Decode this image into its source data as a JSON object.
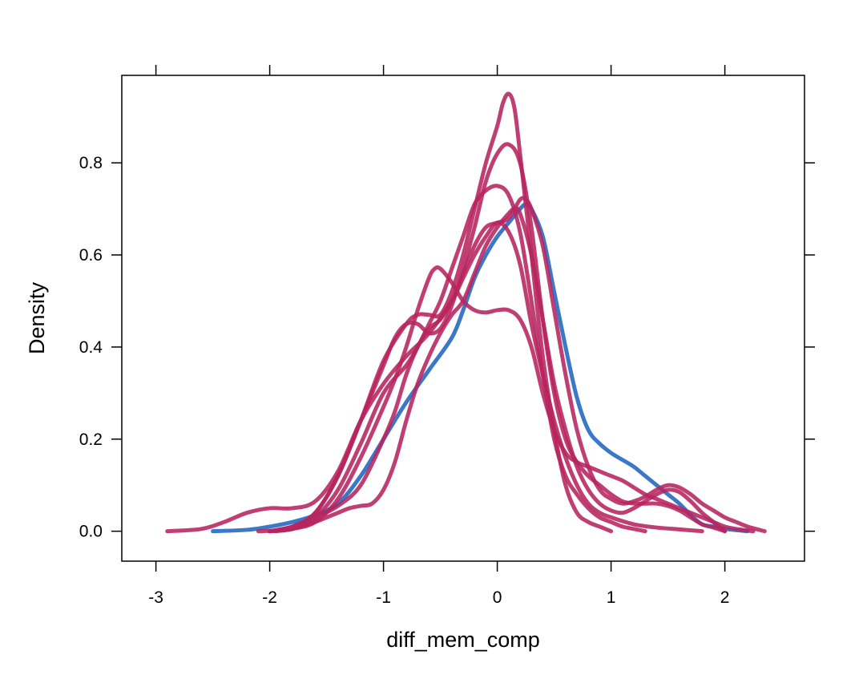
{
  "chart_data": {
    "type": "line",
    "xlabel": "diff_mem_comp",
    "ylabel": "Density",
    "xlim": [
      -3.3,
      2.7
    ],
    "ylim": [
      -0.065,
      0.99
    ],
    "x_ticks": [
      -3,
      -2,
      -1,
      0,
      1,
      2
    ],
    "x_tick_labels": [
      "-3",
      "-2",
      "-1",
      "0",
      "1",
      "2"
    ],
    "y_ticks": [
      0.0,
      0.2,
      0.4,
      0.6,
      0.8
    ],
    "y_tick_labels": [
      "0.0",
      "0.2",
      "0.4",
      "0.6",
      "0.8"
    ],
    "grid": false,
    "series": [
      {
        "color": "#3B78C8",
        "points": [
          [
            -2.5,
            0.0
          ],
          [
            -2.2,
            0.003
          ],
          [
            -2.0,
            0.01
          ],
          [
            -1.8,
            0.02
          ],
          [
            -1.6,
            0.035
          ],
          [
            -1.4,
            0.06
          ],
          [
            -1.2,
            0.12
          ],
          [
            -1.0,
            0.2
          ],
          [
            -0.8,
            0.28
          ],
          [
            -0.6,
            0.35
          ],
          [
            -0.4,
            0.42
          ],
          [
            -0.3,
            0.48
          ],
          [
            -0.2,
            0.55
          ],
          [
            -0.1,
            0.6
          ],
          [
            0.0,
            0.64
          ],
          [
            0.1,
            0.67
          ],
          [
            0.2,
            0.7
          ],
          [
            0.25,
            0.71
          ],
          [
            0.3,
            0.7
          ],
          [
            0.4,
            0.64
          ],
          [
            0.5,
            0.52
          ],
          [
            0.6,
            0.4
          ],
          [
            0.7,
            0.29
          ],
          [
            0.8,
            0.22
          ],
          [
            0.9,
            0.19
          ],
          [
            1.0,
            0.17
          ],
          [
            1.1,
            0.155
          ],
          [
            1.2,
            0.14
          ],
          [
            1.3,
            0.12
          ],
          [
            1.4,
            0.1
          ],
          [
            1.5,
            0.08
          ],
          [
            1.6,
            0.06
          ],
          [
            1.7,
            0.035
          ],
          [
            1.8,
            0.015
          ],
          [
            1.9,
            0.01
          ],
          [
            2.0,
            0.005
          ],
          [
            2.2,
            0.0
          ]
        ]
      },
      {
        "color": "#B7245F",
        "points": [
          [
            -2.9,
            0.0
          ],
          [
            -2.6,
            0.005
          ],
          [
            -2.4,
            0.02
          ],
          [
            -2.2,
            0.04
          ],
          [
            -2.0,
            0.05
          ],
          [
            -1.8,
            0.05
          ],
          [
            -1.6,
            0.065
          ],
          [
            -1.4,
            0.13
          ],
          [
            -1.2,
            0.24
          ],
          [
            -1.0,
            0.32
          ],
          [
            -0.8,
            0.38
          ],
          [
            -0.6,
            0.43
          ],
          [
            -0.4,
            0.5
          ],
          [
            -0.3,
            0.55
          ],
          [
            -0.2,
            0.6
          ],
          [
            -0.1,
            0.64
          ],
          [
            0.0,
            0.67
          ],
          [
            0.1,
            0.65
          ],
          [
            0.2,
            0.58
          ],
          [
            0.3,
            0.45
          ],
          [
            0.4,
            0.34
          ],
          [
            0.5,
            0.24
          ],
          [
            0.6,
            0.16
          ],
          [
            0.7,
            0.1
          ],
          [
            0.8,
            0.06
          ],
          [
            0.9,
            0.04
          ],
          [
            1.0,
            0.03
          ],
          [
            1.2,
            0.015
          ],
          [
            1.4,
            0.008
          ],
          [
            1.6,
            0.004
          ],
          [
            1.8,
            0.0
          ]
        ]
      },
      {
        "color": "#B7245F",
        "points": [
          [
            -2.1,
            0.0
          ],
          [
            -1.8,
            0.005
          ],
          [
            -1.6,
            0.03
          ],
          [
            -1.4,
            0.09
          ],
          [
            -1.2,
            0.19
          ],
          [
            -1.0,
            0.3
          ],
          [
            -0.8,
            0.36
          ],
          [
            -0.7,
            0.4
          ],
          [
            -0.6,
            0.45
          ],
          [
            -0.5,
            0.5
          ],
          [
            -0.4,
            0.57
          ],
          [
            -0.3,
            0.64
          ],
          [
            -0.2,
            0.71
          ],
          [
            -0.1,
            0.74
          ],
          [
            0.0,
            0.75
          ],
          [
            0.1,
            0.73
          ],
          [
            0.2,
            0.65
          ],
          [
            0.3,
            0.5
          ],
          [
            0.4,
            0.34
          ],
          [
            0.5,
            0.2
          ],
          [
            0.6,
            0.12
          ],
          [
            0.7,
            0.08
          ],
          [
            0.8,
            0.05
          ],
          [
            0.9,
            0.03
          ],
          [
            1.0,
            0.02
          ],
          [
            1.1,
            0.01
          ],
          [
            1.2,
            0.005
          ],
          [
            1.3,
            0.0
          ]
        ]
      },
      {
        "color": "#B7245F",
        "points": [
          [
            -2.0,
            0.0
          ],
          [
            -1.8,
            0.01
          ],
          [
            -1.6,
            0.04
          ],
          [
            -1.4,
            0.12
          ],
          [
            -1.2,
            0.24
          ],
          [
            -1.0,
            0.37
          ],
          [
            -0.8,
            0.45
          ],
          [
            -0.7,
            0.47
          ],
          [
            -0.6,
            0.47
          ],
          [
            -0.5,
            0.47
          ],
          [
            -0.4,
            0.52
          ],
          [
            -0.3,
            0.6
          ],
          [
            -0.2,
            0.7
          ],
          [
            -0.1,
            0.8
          ],
          [
            0.0,
            0.88
          ],
          [
            0.05,
            0.93
          ],
          [
            0.1,
            0.95
          ],
          [
            0.15,
            0.92
          ],
          [
            0.2,
            0.82
          ],
          [
            0.3,
            0.6
          ],
          [
            0.4,
            0.38
          ],
          [
            0.5,
            0.22
          ],
          [
            0.6,
            0.1
          ],
          [
            0.7,
            0.04
          ],
          [
            0.8,
            0.02
          ],
          [
            0.9,
            0.01
          ],
          [
            1.0,
            0.0
          ]
        ]
      },
      {
        "color": "#B7245F",
        "points": [
          [
            -2.0,
            0.0
          ],
          [
            -1.8,
            0.01
          ],
          [
            -1.6,
            0.04
          ],
          [
            -1.4,
            0.12
          ],
          [
            -1.2,
            0.24
          ],
          [
            -1.0,
            0.36
          ],
          [
            -0.9,
            0.42
          ],
          [
            -0.8,
            0.45
          ],
          [
            -0.7,
            0.45
          ],
          [
            -0.6,
            0.43
          ],
          [
            -0.5,
            0.44
          ],
          [
            -0.4,
            0.49
          ],
          [
            -0.3,
            0.57
          ],
          [
            -0.2,
            0.66
          ],
          [
            -0.1,
            0.76
          ],
          [
            0.0,
            0.82
          ],
          [
            0.1,
            0.84
          ],
          [
            0.2,
            0.8
          ],
          [
            0.3,
            0.66
          ],
          [
            0.4,
            0.46
          ],
          [
            0.5,
            0.3
          ],
          [
            0.6,
            0.2
          ],
          [
            0.7,
            0.15
          ],
          [
            0.8,
            0.12
          ],
          [
            0.9,
            0.1
          ],
          [
            1.0,
            0.08
          ],
          [
            1.1,
            0.065
          ],
          [
            1.2,
            0.06
          ],
          [
            1.3,
            0.06
          ],
          [
            1.4,
            0.06
          ],
          [
            1.5,
            0.055
          ],
          [
            1.6,
            0.045
          ],
          [
            1.7,
            0.03
          ],
          [
            1.8,
            0.015
          ],
          [
            1.9,
            0.008
          ],
          [
            2.0,
            0.0
          ]
        ]
      },
      {
        "color": "#B7245F",
        "points": [
          [
            -1.95,
            0.0
          ],
          [
            -1.8,
            0.005
          ],
          [
            -1.6,
            0.02
          ],
          [
            -1.4,
            0.07
          ],
          [
            -1.2,
            0.16
          ],
          [
            -1.0,
            0.27
          ],
          [
            -0.9,
            0.33
          ],
          [
            -0.8,
            0.4
          ],
          [
            -0.7,
            0.48
          ],
          [
            -0.6,
            0.55
          ],
          [
            -0.55,
            0.57
          ],
          [
            -0.5,
            0.57
          ],
          [
            -0.4,
            0.54
          ],
          [
            -0.3,
            0.5
          ],
          [
            -0.2,
            0.48
          ],
          [
            -0.1,
            0.475
          ],
          [
            0.0,
            0.48
          ],
          [
            0.1,
            0.48
          ],
          [
            0.2,
            0.46
          ],
          [
            0.3,
            0.4
          ],
          [
            0.4,
            0.3
          ],
          [
            0.5,
            0.22
          ],
          [
            0.6,
            0.17
          ],
          [
            0.7,
            0.15
          ],
          [
            0.8,
            0.14
          ],
          [
            0.9,
            0.13
          ],
          [
            1.0,
            0.12
          ],
          [
            1.1,
            0.11
          ],
          [
            1.2,
            0.095
          ],
          [
            1.3,
            0.08
          ],
          [
            1.4,
            0.07
          ],
          [
            1.5,
            0.06
          ],
          [
            1.6,
            0.05
          ],
          [
            1.7,
            0.04
          ],
          [
            1.8,
            0.03
          ],
          [
            1.9,
            0.02
          ],
          [
            2.0,
            0.01
          ],
          [
            2.1,
            0.005
          ],
          [
            2.25,
            0.0
          ]
        ]
      },
      {
        "color": "#B7245F",
        "points": [
          [
            -2.0,
            0.0
          ],
          [
            -1.8,
            0.01
          ],
          [
            -1.6,
            0.03
          ],
          [
            -1.4,
            0.055
          ],
          [
            -1.2,
            0.1
          ],
          [
            -1.0,
            0.2
          ],
          [
            -0.9,
            0.26
          ],
          [
            -0.8,
            0.34
          ],
          [
            -0.7,
            0.4
          ],
          [
            -0.6,
            0.44
          ],
          [
            -0.5,
            0.46
          ],
          [
            -0.4,
            0.5
          ],
          [
            -0.3,
            0.56
          ],
          [
            -0.2,
            0.62
          ],
          [
            -0.1,
            0.66
          ],
          [
            0.0,
            0.67
          ],
          [
            0.1,
            0.68
          ],
          [
            0.2,
            0.72
          ],
          [
            0.25,
            0.72
          ],
          [
            0.3,
            0.7
          ],
          [
            0.4,
            0.62
          ],
          [
            0.5,
            0.48
          ],
          [
            0.6,
            0.34
          ],
          [
            0.7,
            0.22
          ],
          [
            0.8,
            0.14
          ],
          [
            0.9,
            0.09
          ],
          [
            1.0,
            0.07
          ],
          [
            1.1,
            0.06
          ],
          [
            1.2,
            0.065
          ],
          [
            1.3,
            0.075
          ],
          [
            1.4,
            0.09
          ],
          [
            1.5,
            0.1
          ],
          [
            1.6,
            0.095
          ],
          [
            1.7,
            0.08
          ],
          [
            1.8,
            0.06
          ],
          [
            1.9,
            0.045
          ],
          [
            2.0,
            0.03
          ],
          [
            2.1,
            0.02
          ],
          [
            2.2,
            0.01
          ],
          [
            2.35,
            0.0
          ]
        ]
      },
      {
        "color": "#B7245F",
        "points": [
          [
            -2.0,
            0.0
          ],
          [
            -1.8,
            0.005
          ],
          [
            -1.6,
            0.02
          ],
          [
            -1.5,
            0.03
          ],
          [
            -1.4,
            0.04
          ],
          [
            -1.3,
            0.05
          ],
          [
            -1.2,
            0.055
          ],
          [
            -1.1,
            0.06
          ],
          [
            -1.0,
            0.09
          ],
          [
            -0.9,
            0.15
          ],
          [
            -0.8,
            0.24
          ],
          [
            -0.7,
            0.32
          ],
          [
            -0.6,
            0.38
          ],
          [
            -0.5,
            0.43
          ],
          [
            -0.4,
            0.47
          ],
          [
            -0.3,
            0.5
          ],
          [
            -0.2,
            0.56
          ],
          [
            -0.1,
            0.62
          ],
          [
            0.0,
            0.66
          ],
          [
            0.1,
            0.69
          ],
          [
            0.15,
            0.7
          ],
          [
            0.2,
            0.69
          ],
          [
            0.3,
            0.6
          ],
          [
            0.4,
            0.46
          ],
          [
            0.5,
            0.32
          ],
          [
            0.6,
            0.22
          ],
          [
            0.7,
            0.14
          ],
          [
            0.8,
            0.09
          ],
          [
            0.9,
            0.06
          ],
          [
            1.0,
            0.045
          ],
          [
            1.1,
            0.04
          ],
          [
            1.2,
            0.05
          ],
          [
            1.3,
            0.065
          ],
          [
            1.4,
            0.08
          ],
          [
            1.5,
            0.09
          ],
          [
            1.6,
            0.085
          ],
          [
            1.7,
            0.065
          ],
          [
            1.8,
            0.04
          ],
          [
            1.9,
            0.02
          ],
          [
            2.0,
            0.0
          ]
        ]
      }
    ]
  }
}
